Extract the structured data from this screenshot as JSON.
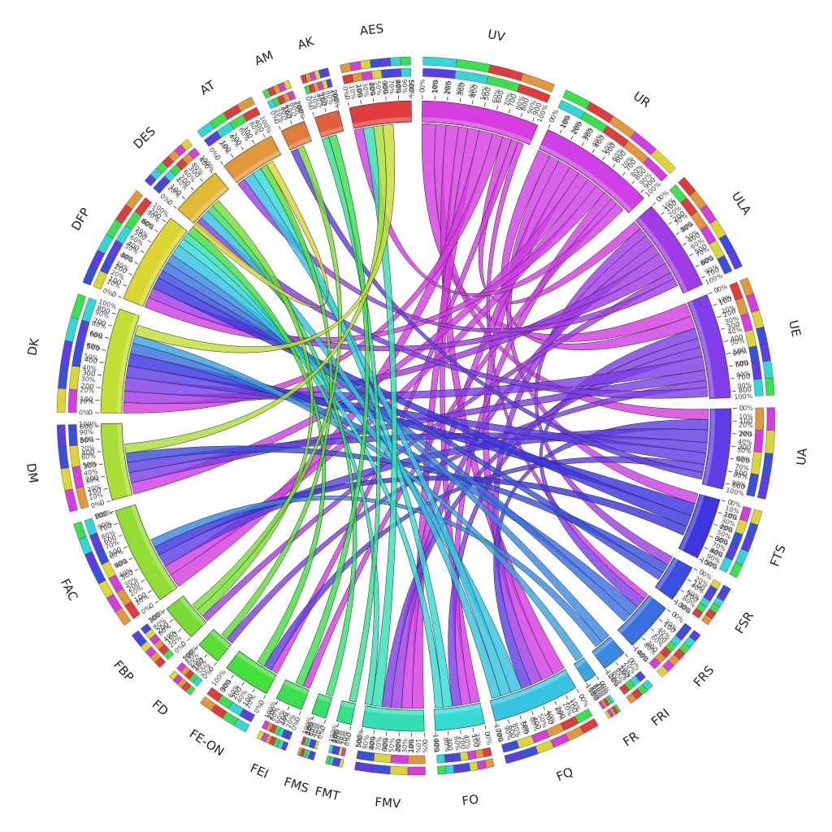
{
  "chart_data": {
    "type": "chord",
    "segments": [
      {
        "name": "UV",
        "total": 950,
        "color": "#d63de0"
      },
      {
        "name": "UR",
        "total": 950,
        "color": "#cf40e6"
      },
      {
        "name": "ULA",
        "total": 750,
        "color": "#a13de6"
      },
      {
        "name": "UE",
        "total": 850,
        "color": "#7f3ee8"
      },
      {
        "name": "UA",
        "total": 650,
        "color": "#5f3ee6"
      },
      {
        "name": "FTS",
        "total": 500,
        "color": "#3d35e0"
      },
      {
        "name": "FSR",
        "total": 300,
        "color": "#3a4fe0"
      },
      {
        "name": "FRS",
        "total": 400,
        "color": "#3a6fe0"
      },
      {
        "name": "FRI",
        "total": 200,
        "color": "#3b88e2"
      },
      {
        "name": "FR",
        "total": 100,
        "color": "#3aa4e0"
      },
      {
        "name": "FQ",
        "total": 700,
        "color": "#36c3e0"
      },
      {
        "name": "FO",
        "total": 400,
        "color": "#35dcd6"
      },
      {
        "name": "FMV",
        "total": 500,
        "color": "#33e0b4"
      },
      {
        "name": "FMT",
        "total": 120,
        "color": "#33e08e"
      },
      {
        "name": "FMS",
        "total": 120,
        "color": "#35e06a"
      },
      {
        "name": "FEI",
        "total": 220,
        "color": "#3ae04e"
      },
      {
        "name": "FE-ON",
        "total": 380,
        "color": "#43e03d"
      },
      {
        "name": "FD",
        "total": 200,
        "color": "#5ade38"
      },
      {
        "name": "FBP",
        "total": 300,
        "color": "#78dc36"
      },
      {
        "name": "FAC",
        "total": 800,
        "color": "#93dc34"
      },
      {
        "name": "DM",
        "total": 620,
        "color": "#abde34"
      },
      {
        "name": "DK",
        "total": 850,
        "color": "#c4de33"
      },
      {
        "name": "DFP",
        "total": 750,
        "color": "#dbd634"
      },
      {
        "name": "DES",
        "total": 420,
        "color": "#e2b834"
      },
      {
        "name": "AT",
        "total": 450,
        "color": "#e2973a"
      },
      {
        "name": "AM",
        "total": 200,
        "color": "#e27a3a"
      },
      {
        "name": "AK",
        "total": 200,
        "color": "#e25e3c"
      },
      {
        "name": "AES",
        "total": 500,
        "color": "#e03c3c"
      }
    ],
    "links": [
      {
        "source": "UV",
        "target": "UE",
        "value": 120
      },
      {
        "source": "UV",
        "target": "UA",
        "value": 90
      },
      {
        "source": "UV",
        "target": "FQ",
        "value": 110
      },
      {
        "source": "UV",
        "target": "FO",
        "value": 80
      },
      {
        "source": "UV",
        "target": "FMV",
        "value": 100
      },
      {
        "source": "UV",
        "target": "FAC",
        "value": 120
      },
      {
        "source": "UV",
        "target": "DK",
        "value": 90
      },
      {
        "source": "UV",
        "target": "ULA",
        "value": 80
      },
      {
        "source": "UV",
        "target": "FE-ON",
        "value": 60
      },
      {
        "source": "UV",
        "target": "FRS",
        "value": 50
      },
      {
        "source": "UR",
        "target": "UE",
        "value": 110
      },
      {
        "source": "UR",
        "target": "FTS",
        "value": 90
      },
      {
        "source": "UR",
        "target": "FQ",
        "value": 110
      },
      {
        "source": "UR",
        "target": "FMV",
        "value": 90
      },
      {
        "source": "UR",
        "target": "DM",
        "value": 100
      },
      {
        "source": "UR",
        "target": "FAC",
        "value": 90
      },
      {
        "source": "UR",
        "target": "DFP",
        "value": 90
      },
      {
        "source": "UR",
        "target": "FO",
        "value": 80
      },
      {
        "source": "UR",
        "target": "FEI",
        "value": 60
      },
      {
        "source": "UR",
        "target": "AES",
        "value": 80
      },
      {
        "source": "ULA",
        "target": "FSR",
        "value": 80
      },
      {
        "source": "ULA",
        "target": "FQ",
        "value": 100
      },
      {
        "source": "ULA",
        "target": "FMV",
        "value": 90
      },
      {
        "source": "ULA",
        "target": "DK",
        "value": 100
      },
      {
        "source": "ULA",
        "target": "DFP",
        "value": 90
      },
      {
        "source": "ULA",
        "target": "FBP",
        "value": 60
      },
      {
        "source": "ULA",
        "target": "AT",
        "value": 70
      },
      {
        "source": "UE",
        "target": "FRS",
        "value": 90
      },
      {
        "source": "UE",
        "target": "FO",
        "value": 80
      },
      {
        "source": "UE",
        "target": "FMV",
        "value": 80
      },
      {
        "source": "UE",
        "target": "DK",
        "value": 120
      },
      {
        "source": "UE",
        "target": "DM",
        "value": 90
      },
      {
        "source": "UE",
        "target": "FD",
        "value": 60
      },
      {
        "source": "UE",
        "target": "DES",
        "value": 80
      },
      {
        "source": "UA",
        "target": "FQ",
        "value": 90
      },
      {
        "source": "UA",
        "target": "FAC",
        "value": 110
      },
      {
        "source": "UA",
        "target": "DM",
        "value": 90
      },
      {
        "source": "UA",
        "target": "DK",
        "value": 100
      },
      {
        "source": "UA",
        "target": "FE-ON",
        "value": 70
      },
      {
        "source": "UA",
        "target": "AM",
        "value": 60
      },
      {
        "source": "FTS",
        "target": "DK",
        "value": 110
      },
      {
        "source": "FTS",
        "target": "DFP",
        "value": 100
      },
      {
        "source": "FTS",
        "target": "FAC",
        "value": 80
      },
      {
        "source": "FSR",
        "target": "DM",
        "value": 80
      },
      {
        "source": "FSR",
        "target": "DFP",
        "value": 70
      },
      {
        "source": "FRS",
        "target": "DK",
        "value": 90
      },
      {
        "source": "FRS",
        "target": "DFP",
        "value": 80
      },
      {
        "source": "FRI",
        "target": "DFP",
        "value": 80
      },
      {
        "source": "FRI",
        "target": "FAC",
        "value": 70
      },
      {
        "source": "FR",
        "target": "DK",
        "value": 70
      },
      {
        "source": "FQ",
        "target": "DFP",
        "value": 100
      },
      {
        "source": "FQ",
        "target": "AT",
        "value": 90
      },
      {
        "source": "FQ",
        "target": "DES",
        "value": 80
      },
      {
        "source": "FO",
        "target": "AT",
        "value": 80
      },
      {
        "source": "FO",
        "target": "DFP",
        "value": 70
      },
      {
        "source": "FMV",
        "target": "AES",
        "value": 90
      },
      {
        "source": "FMV",
        "target": "DFP",
        "value": 60
      },
      {
        "source": "FMT",
        "target": "AK",
        "value": 60
      },
      {
        "source": "FMS",
        "target": "DES",
        "value": 60
      },
      {
        "source": "FEI",
        "target": "AK",
        "value": 70
      },
      {
        "source": "FE-ON",
        "target": "DFP",
        "value": 70
      },
      {
        "source": "FD",
        "target": "AT",
        "value": 60
      },
      {
        "source": "FBP",
        "target": "DES",
        "value": 70
      },
      {
        "source": "FBP",
        "target": "AM",
        "value": 60
      },
      {
        "source": "DM",
        "target": "AES",
        "value": 80
      },
      {
        "source": "DK",
        "target": "AES",
        "value": 90
      },
      {
        "source": "DFP",
        "target": "AT",
        "value": 60
      }
    ],
    "tick_step": 100,
    "percent_labels": [
      "0%",
      "10%",
      "20%",
      "30%",
      "40%",
      "50%",
      "60%",
      "70%",
      "80%",
      "90%",
      "100%"
    ],
    "coarse_percent_labels": [
      "0%",
      "20%",
      "40%",
      "60%",
      "80%",
      "100%"
    ]
  }
}
